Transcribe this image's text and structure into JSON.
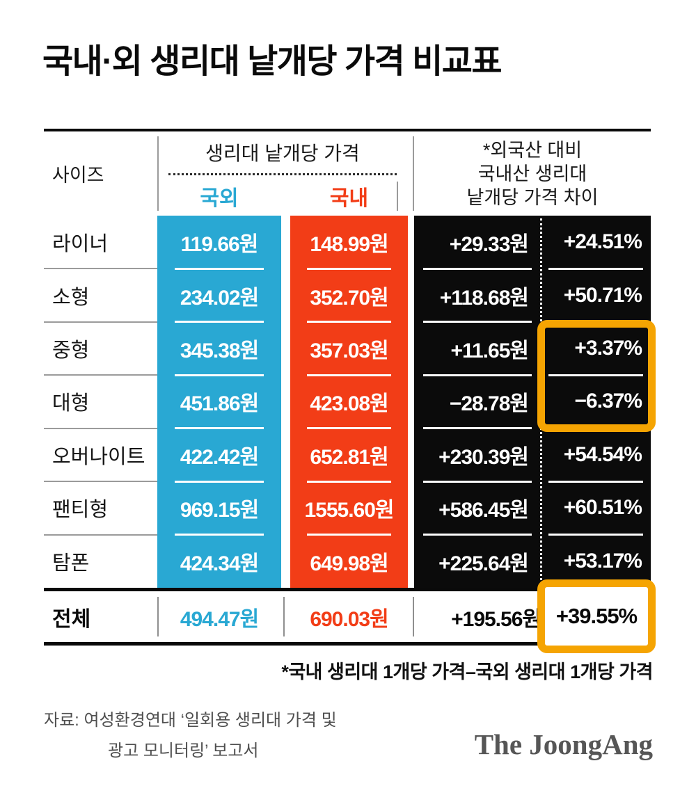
{
  "title": "국내·외 생리대 낱개당 가격 비교표",
  "colors": {
    "foreign_blue": "#29A8D3",
    "domestic_red": "#F23D17",
    "diff_black": "#0B0B0B",
    "highlight_orange": "#F5A402",
    "divider_gray": "#9B9B9B",
    "source_gray": "#4F4F4F"
  },
  "header": {
    "size_col": "사이즈",
    "price_group": "생리대 낱개당 가격",
    "foreign": "국외",
    "domestic": "국내",
    "diff_line1": "*외국산 대비",
    "diff_line2": "국내산 생리대",
    "diff_line3": "낱개당 가격 차이"
  },
  "rows": [
    {
      "label": "라이너",
      "foreign": "119.66원",
      "domestic": "148.99원",
      "diff_won": "+29.33원",
      "diff_pct": "+24.51%"
    },
    {
      "label": "소형",
      "foreign": "234.02원",
      "domestic": "352.70원",
      "diff_won": "+118.68원",
      "diff_pct": "+50.71%"
    },
    {
      "label": "중형",
      "foreign": "345.38원",
      "domestic": "357.03원",
      "diff_won": "+11.65원",
      "diff_pct": "+3.37%"
    },
    {
      "label": "대형",
      "foreign": "451.86원",
      "domestic": "423.08원",
      "diff_won": "−28.78원",
      "diff_pct": "−6.37%"
    },
    {
      "label": "오버나이트",
      "foreign": "422.42원",
      "domestic": "652.81원",
      "diff_won": "+230.39원",
      "diff_pct": "+54.54%"
    },
    {
      "label": "팬티형",
      "foreign": "969.15원",
      "domestic": "1555.60원",
      "diff_won": "+586.45원",
      "diff_pct": "+60.51%"
    },
    {
      "label": "탐폰",
      "foreign": "424.34원",
      "domestic": "649.98원",
      "diff_won": "+225.64원",
      "diff_pct": "+53.17%"
    }
  ],
  "total": {
    "label": "전체",
    "foreign": "494.47원",
    "domestic": "690.03원",
    "diff_won": "+195.56원",
    "diff_pct": "+39.55%"
  },
  "footnote": "*국내 생리대 1개당 가격–국외 생리대 1개당 가격",
  "source_line1": "자료: 여성환경연대 ‘일회용 생리대 가격 및",
  "source_line2": "광고 모니터링’ 보고서",
  "logo": "The JoongAng",
  "chart_data": {
    "type": "table",
    "title": "국내·외 생리대 낱개당 가격 비교표",
    "columns": [
      "사이즈",
      "국외 생리대 낱개당 가격(원)",
      "국내 생리대 낱개당 가격(원)",
      "외국산 대비 국내산 가격 차이(원)",
      "외국산 대비 국내산 가격 차이(%)"
    ],
    "rows": [
      [
        "라이너",
        119.66,
        148.99,
        29.33,
        24.51
      ],
      [
        "소형",
        234.02,
        352.7,
        118.68,
        50.71
      ],
      [
        "중형",
        345.38,
        357.03,
        11.65,
        3.37
      ],
      [
        "대형",
        451.86,
        423.08,
        -28.78,
        -6.37
      ],
      [
        "오버나이트",
        422.42,
        652.81,
        230.39,
        54.54
      ],
      [
        "팬티형",
        969.15,
        1555.6,
        586.45,
        60.51
      ],
      [
        "탐폰",
        424.34,
        649.98,
        225.64,
        53.17
      ],
      [
        "전체",
        494.47,
        690.03,
        195.56,
        39.55
      ]
    ],
    "highlighted_cells": [
      "중형 diff %",
      "대형 diff %",
      "전체 diff %"
    ],
    "footnote": "*국내 생리대 1개당 가격–국외 생리대 1개당 가격",
    "source": "여성환경연대 ‘일회용 생리대 가격 및 광고 모니터링’ 보고서"
  }
}
